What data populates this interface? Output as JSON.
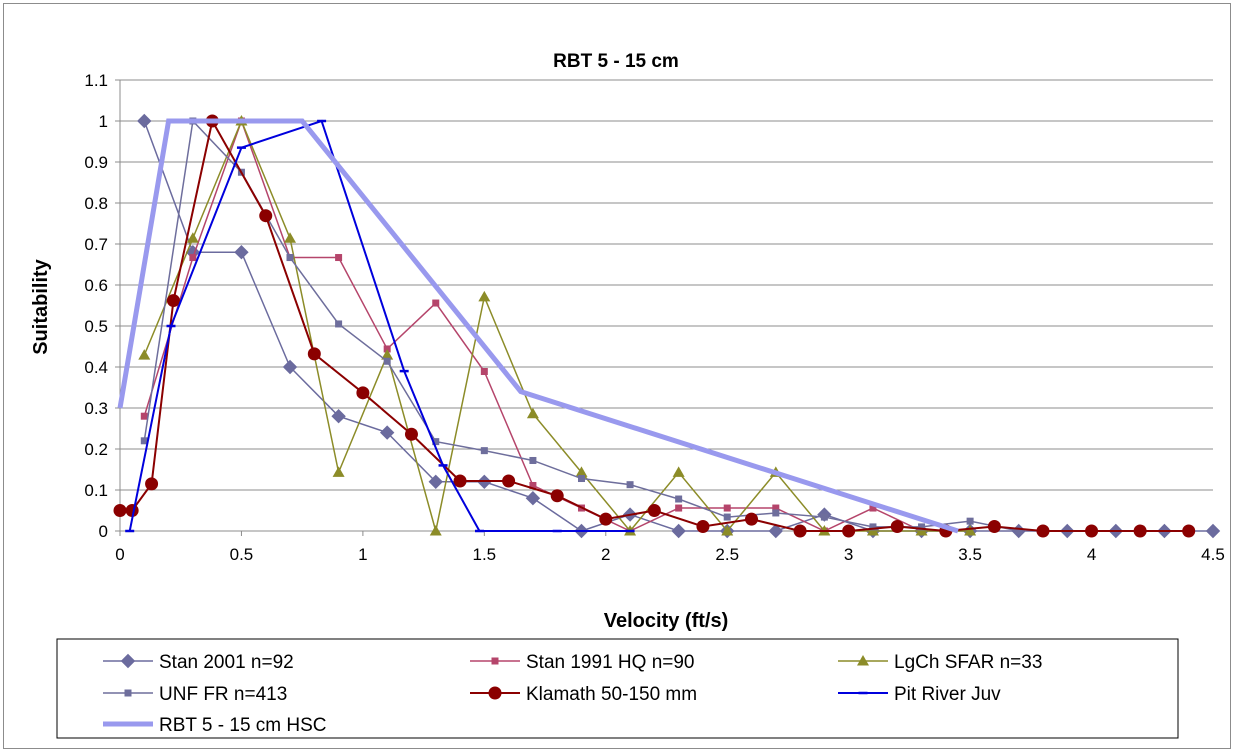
{
  "chart_data": {
    "type": "line",
    "title": "RBT 5 - 15 cm",
    "xlabel": "Velocity (ft/s)",
    "ylabel": "Suitability",
    "xlim": [
      0,
      4.5
    ],
    "ylim": [
      0,
      1.1
    ],
    "xticks": [
      0,
      0.5,
      1,
      1.5,
      2,
      2.5,
      3,
      3.5,
      4,
      4.5
    ],
    "xtick_labels": [
      "0",
      "0.5",
      "1",
      "1.5",
      "2",
      "2.5",
      "3",
      "3.5",
      "4",
      "4.5"
    ],
    "yticks": [
      0,
      0.1,
      0.2,
      0.3,
      0.4,
      0.5,
      0.6,
      0.7,
      0.8,
      0.9,
      1,
      1.1
    ],
    "ytick_labels": [
      "0",
      "0.1",
      "0.2",
      "0.3",
      "0.4",
      "0.5",
      "0.6",
      "0.7",
      "0.8",
      "0.9",
      "1",
      "1.1"
    ],
    "grid": "horizontal",
    "legend_position": "bottom",
    "series": [
      {
        "name": "Stan 2001 n=92",
        "color": "#6b6b9e",
        "marker": "diamond",
        "line_width": 1.5,
        "points": [
          [
            0.1,
            1.0
          ],
          [
            0.3,
            0.68
          ],
          [
            0.5,
            0.68
          ],
          [
            0.7,
            0.4
          ],
          [
            0.9,
            0.28
          ],
          [
            1.1,
            0.24
          ],
          [
            1.3,
            0.12
          ],
          [
            1.5,
            0.12
          ],
          [
            1.7,
            0.08
          ],
          [
            1.9,
            0.0
          ],
          [
            2.1,
            0.04
          ],
          [
            2.3,
            0.0
          ],
          [
            2.5,
            0.0
          ],
          [
            2.7,
            0.0
          ],
          [
            2.9,
            0.04
          ],
          [
            3.1,
            0.0
          ],
          [
            3.3,
            0.0
          ],
          [
            3.5,
            0.0
          ],
          [
            3.7,
            0.0
          ],
          [
            3.9,
            0.0
          ],
          [
            4.1,
            0.0
          ],
          [
            4.3,
            0.0
          ],
          [
            4.5,
            0.0
          ]
        ]
      },
      {
        "name": "Stan 1991 HQ n=90",
        "color": "#b5456b",
        "marker": "square",
        "line_width": 1.5,
        "points": [
          [
            0.1,
            0.28
          ],
          [
            0.3,
            0.667
          ],
          [
            0.5,
            1.0
          ],
          [
            0.7,
            0.667
          ],
          [
            0.9,
            0.667
          ],
          [
            1.1,
            0.444
          ],
          [
            1.3,
            0.556
          ],
          [
            1.5,
            0.389
          ],
          [
            1.7,
            0.111
          ],
          [
            1.9,
            0.056
          ],
          [
            2.1,
            0.0
          ],
          [
            2.3,
            0.056
          ],
          [
            2.5,
            0.056
          ],
          [
            2.7,
            0.056
          ],
          [
            2.9,
            0.0
          ],
          [
            3.1,
            0.056
          ],
          [
            3.3,
            0.0
          ]
        ]
      },
      {
        "name": "LgCh SFAR n=33",
        "color": "#8c8c28",
        "marker": "triangle",
        "line_width": 1.5,
        "points": [
          [
            0.1,
            0.429
          ],
          [
            0.3,
            0.714
          ],
          [
            0.5,
            1.0
          ],
          [
            0.7,
            0.714
          ],
          [
            0.9,
            0.143
          ],
          [
            1.1,
            0.429
          ],
          [
            1.3,
            0.0
          ],
          [
            1.5,
            0.571
          ],
          [
            1.7,
            0.286
          ],
          [
            1.9,
            0.143
          ],
          [
            2.1,
            0.0
          ],
          [
            2.3,
            0.143
          ],
          [
            2.5,
            0.0
          ],
          [
            2.7,
            0.143
          ],
          [
            2.9,
            0.0
          ],
          [
            3.1,
            0.0
          ],
          [
            3.3,
            0.0
          ],
          [
            3.5,
            0.0
          ]
        ]
      },
      {
        "name": "UNF FR n=413",
        "color": "#6e6e9c",
        "marker": "smallsquare",
        "line_width": 1.5,
        "points": [
          [
            0.1,
            0.22
          ],
          [
            0.3,
            1.0
          ],
          [
            0.5,
            0.875
          ],
          [
            0.7,
            0.667
          ],
          [
            0.9,
            0.505
          ],
          [
            1.1,
            0.414
          ],
          [
            1.3,
            0.218
          ],
          [
            1.5,
            0.196
          ],
          [
            1.7,
            0.172
          ],
          [
            1.9,
            0.128
          ],
          [
            2.1,
            0.113
          ],
          [
            2.3,
            0.078
          ],
          [
            2.5,
            0.034
          ],
          [
            2.7,
            0.044
          ],
          [
            2.9,
            0.034
          ],
          [
            3.1,
            0.01
          ],
          [
            3.3,
            0.01
          ],
          [
            3.5,
            0.024
          ],
          [
            3.7,
            0.0
          ]
        ]
      },
      {
        "name": "Klamath 50-150 mm",
        "color": "#8b0000",
        "marker": "circle",
        "line_width": 2,
        "points": [
          [
            0.0,
            0.05
          ],
          [
            0.05,
            0.05
          ],
          [
            0.13,
            0.115
          ],
          [
            0.22,
            0.562
          ],
          [
            0.38,
            1.0
          ],
          [
            0.6,
            0.769
          ],
          [
            0.8,
            0.432
          ],
          [
            1.0,
            0.337
          ],
          [
            1.2,
            0.236
          ],
          [
            1.4,
            0.122
          ],
          [
            1.6,
            0.122
          ],
          [
            1.8,
            0.086
          ],
          [
            2.0,
            0.029
          ],
          [
            2.2,
            0.05
          ],
          [
            2.4,
            0.011
          ],
          [
            2.6,
            0.029
          ],
          [
            2.8,
            0.0
          ],
          [
            3.0,
            0.0
          ],
          [
            3.2,
            0.011
          ],
          [
            3.4,
            0.0
          ],
          [
            3.6,
            0.011
          ],
          [
            3.8,
            0.0
          ],
          [
            4.0,
            0.0
          ],
          [
            4.2,
            0.0
          ],
          [
            4.4,
            0.0
          ]
        ]
      },
      {
        "name": "Pit River Juv",
        "color": "#0000dd",
        "marker": "dash",
        "line_width": 2,
        "points": [
          [
            0.04,
            0.0
          ],
          [
            0.21,
            0.5
          ],
          [
            0.5,
            0.935
          ],
          [
            0.83,
            1.0
          ],
          [
            1.17,
            0.39
          ],
          [
            1.33,
            0.16
          ],
          [
            1.48,
            0.0
          ],
          [
            1.8,
            0.0
          ],
          [
            2.1,
            0.0
          ]
        ]
      },
      {
        "name": "RBT 5 - 15 cm HSC",
        "color": "#9999ee",
        "marker": "none",
        "line_width": 5,
        "points": [
          [
            0.0,
            0.3
          ],
          [
            0.2,
            1.0
          ],
          [
            0.75,
            1.0
          ],
          [
            1.65,
            0.34
          ],
          [
            3.45,
            0.0
          ]
        ]
      }
    ]
  }
}
